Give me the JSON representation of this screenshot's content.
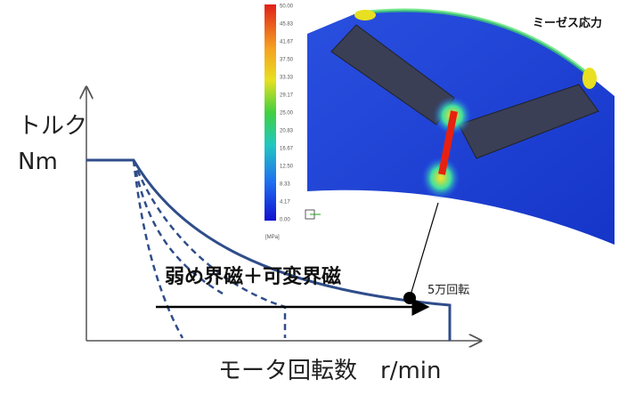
{
  "diagram": {
    "torque_label": "トルク",
    "torque_unit": "Nm",
    "speed_label": "モータ回転数　r/min",
    "method_label": "弱め界磁＋可変界磁",
    "max_speed_label": "5万回転"
  },
  "stress_plot": {
    "title": "ミーゼス応力",
    "scale_labels": [
      "50.00",
      "45.83",
      "41.67",
      "37.50",
      "33.33",
      "29.17",
      "25.00",
      "20.83",
      "16.67",
      "12.50",
      "8.33",
      "4.17",
      "0.00"
    ],
    "unit": "[MPa]"
  }
}
